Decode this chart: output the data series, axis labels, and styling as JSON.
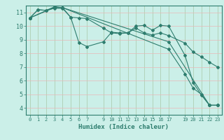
{
  "xlabel": "Humidex (Indice chaleur)",
  "bg_color": "#cbefe8",
  "line_color": "#2e7d6e",
  "xlim": [
    -0.5,
    23.5
  ],
  "ylim": [
    3.5,
    11.5
  ],
  "xtick_vals": [
    0,
    1,
    2,
    3,
    4,
    5,
    6,
    7,
    9,
    10,
    11,
    12,
    13,
    14,
    15,
    16,
    17,
    19,
    20,
    21,
    22,
    23
  ],
  "xtick_labels": [
    "0",
    "1",
    "2",
    "3",
    "4",
    "5",
    "6",
    "7",
    "9",
    "10",
    "11",
    "12",
    "13",
    "14",
    "15",
    "16",
    "17",
    "19",
    "20",
    "21",
    "22",
    "23"
  ],
  "ytick_vals": [
    4,
    5,
    6,
    7,
    8,
    9,
    10,
    11
  ],
  "ytick_labels": [
    "4",
    "5",
    "6",
    "7",
    "8",
    "9",
    "10",
    "11"
  ],
  "series": [
    {
      "x": [
        0,
        1,
        2,
        3,
        4,
        5,
        6,
        7,
        9,
        10,
        11,
        12,
        13,
        14,
        15,
        16,
        17,
        19,
        20,
        21,
        22,
        23
      ],
      "y": [
        10.6,
        11.2,
        11.15,
        11.3,
        11.3,
        10.65,
        8.8,
        8.5,
        8.85,
        9.55,
        9.5,
        9.5,
        10.0,
        10.05,
        9.7,
        10.05,
        10.0,
        7.85,
        5.85,
        4.95,
        4.2,
        4.2
      ]
    },
    {
      "x": [
        0,
        1,
        2,
        3,
        4,
        5,
        6,
        7,
        9,
        10,
        11,
        12,
        13,
        14,
        15,
        16,
        17,
        19,
        20,
        21,
        22,
        23
      ],
      "y": [
        10.6,
        11.2,
        11.15,
        11.4,
        11.35,
        10.65,
        10.6,
        10.55,
        9.85,
        9.5,
        9.45,
        9.5,
        9.85,
        9.5,
        9.35,
        9.5,
        9.3,
        8.75,
        8.1,
        7.75,
        7.35,
        7.0
      ]
    },
    {
      "x": [
        0,
        3,
        4,
        17,
        19,
        20,
        21,
        22,
        23
      ],
      "y": [
        10.6,
        11.4,
        11.35,
        8.3,
        6.5,
        5.45,
        5.0,
        4.2,
        4.2
      ]
    },
    {
      "x": [
        0,
        3,
        4,
        17,
        22,
        23
      ],
      "y": [
        10.6,
        11.35,
        11.35,
        8.85,
        4.2,
        4.2
      ]
    }
  ],
  "marker": "D",
  "marker_size": 2.0,
  "line_width": 0.8
}
